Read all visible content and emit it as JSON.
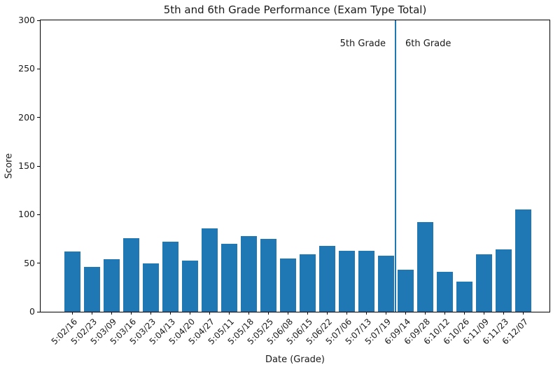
{
  "chart_data": {
    "type": "bar",
    "title": "5th and 6th Grade Performance (Exam Type Total)",
    "xlabel": "Date (Grade)",
    "ylabel": "Score",
    "ylim": [
      0,
      300
    ],
    "yticks": [
      0,
      50,
      100,
      150,
      200,
      250,
      300
    ],
    "grid": false,
    "legend_position": "none",
    "bar_color": "#1f77b4",
    "categories": [
      "5:02/16",
      "5:02/23",
      "5:03/09",
      "5:03/16",
      "5:03/23",
      "5:04/13",
      "5:04/20",
      "5:04/27",
      "5:05/11",
      "5:05/18",
      "5:05/25",
      "5:06/08",
      "5:06/15",
      "5:06/22",
      "5:07/06",
      "5:07/13",
      "5:07/19",
      "6:09/14",
      "6:09/28",
      "6:10/12",
      "6:10/26",
      "6:11/09",
      "6:11/23",
      "6:12/07"
    ],
    "values": [
      62,
      46,
      54,
      76,
      50,
      72,
      53,
      86,
      70,
      78,
      75,
      55,
      59,
      68,
      63,
      63,
      58,
      43,
      92,
      41,
      31,
      59,
      64,
      105
    ],
    "separator": {
      "between_indices": [
        16,
        17
      ],
      "color": "#1f77b4",
      "meaning": "divides 5th grade bars from 6th grade bars"
    },
    "annotations": [
      {
        "text": "5th Grade",
        "side": "left_of_separator",
        "y_value": 275
      },
      {
        "text": "6th Grade",
        "side": "right_of_separator",
        "y_value": 275
      }
    ]
  }
}
